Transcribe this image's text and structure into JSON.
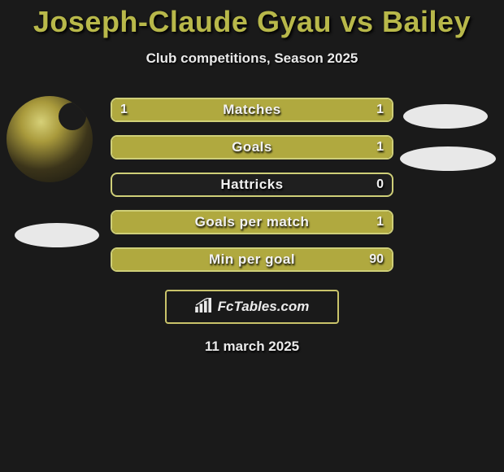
{
  "title": "Joseph-Claude Gyau vs Bailey",
  "subtitle": "Club competitions, Season 2025",
  "date": "11 march 2025",
  "brand": "FcTables.com",
  "colors": {
    "background": "#1a1a1a",
    "accent": "#b0a93f",
    "border": "#cfcf78",
    "title": "#b8b84a",
    "text": "#eaeaea",
    "oval": "#e8e8e8"
  },
  "stats": [
    {
      "label": "Matches",
      "left_value": "1",
      "right_value": "1",
      "left_pct": 50,
      "right_pct": 50
    },
    {
      "label": "Goals",
      "left_value": "",
      "right_value": "1",
      "left_pct": 0,
      "right_pct": 100
    },
    {
      "label": "Hattricks",
      "left_value": "",
      "right_value": "0",
      "left_pct": 0,
      "right_pct": 0
    },
    {
      "label": "Goals per match",
      "left_value": "",
      "right_value": "1",
      "left_pct": 0,
      "right_pct": 100
    },
    {
      "label": "Min per goal",
      "left_value": "",
      "right_value": "90",
      "left_pct": 0,
      "right_pct": 100
    }
  ]
}
